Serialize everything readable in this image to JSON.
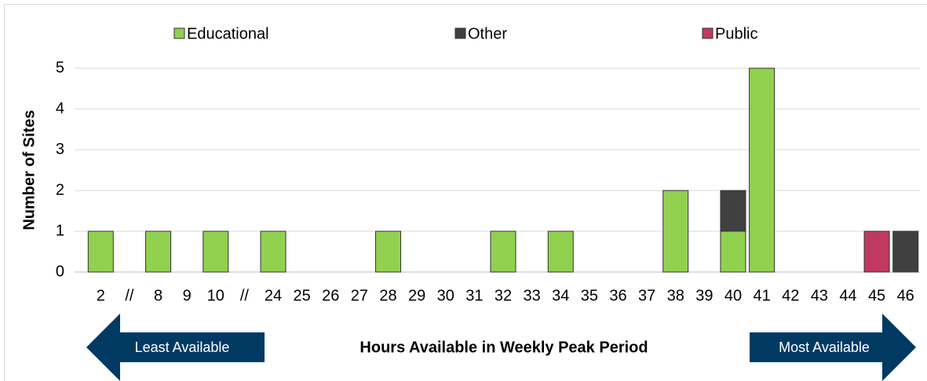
{
  "chart_data": {
    "type": "stacked_bar",
    "x_label": "Hours Available in Weekly Peak Period",
    "y_label": "Number of Sites",
    "categories": [
      "2",
      "//",
      "8",
      "9",
      "10",
      "//",
      "24",
      "25",
      "26",
      "27",
      "28",
      "29",
      "30",
      "31",
      "32",
      "33",
      "34",
      "35",
      "36",
      "37",
      "38",
      "39",
      "40",
      "41",
      "42",
      "43",
      "44",
      "45",
      "46"
    ],
    "series": [
      {
        "name": "Educational",
        "color": "#92d050",
        "values": [
          1,
          0,
          1,
          0,
          1,
          0,
          1,
          0,
          0,
          0,
          1,
          0,
          0,
          0,
          1,
          0,
          1,
          0,
          0,
          0,
          2,
          0,
          1,
          5,
          0,
          0,
          0,
          0,
          0
        ]
      },
      {
        "name": "Other",
        "color": "#404040",
        "values": [
          0,
          0,
          0,
          0,
          0,
          0,
          0,
          0,
          0,
          0,
          0,
          0,
          0,
          0,
          0,
          0,
          0,
          0,
          0,
          0,
          0,
          0,
          1,
          0,
          0,
          0,
          0,
          0,
          1
        ]
      },
      {
        "name": "Public",
        "color": "#c0395e",
        "values": [
          0,
          0,
          0,
          0,
          0,
          0,
          0,
          0,
          0,
          0,
          0,
          0,
          0,
          0,
          0,
          0,
          0,
          0,
          0,
          0,
          0,
          0,
          0,
          0,
          0,
          0,
          0,
          1,
          0
        ]
      }
    ],
    "ylim": [
      0,
      5
    ],
    "yticks": [
      0,
      1,
      2,
      3,
      4,
      5
    ],
    "grid": true,
    "legend": "top",
    "annotations": [
      "Least Available",
      "Most Available"
    ]
  }
}
